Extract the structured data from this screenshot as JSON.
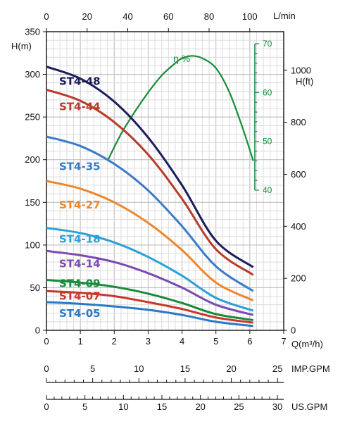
{
  "chart_data": {
    "type": "line",
    "x_bottom": {
      "label": "Q(m³/h)",
      "range": [
        0,
        7
      ],
      "ticks": [
        "0",
        "1",
        "2",
        "3",
        "4",
        "5",
        "6",
        "7"
      ]
    },
    "x_top": {
      "label": "L/min",
      "range": [
        0,
        116.7
      ],
      "ticks": [
        "0",
        "20",
        "40",
        "60",
        "80",
        "100"
      ]
    },
    "y_left": {
      "label": "H(m)",
      "range": [
        0,
        350
      ],
      "ticks": [
        "0",
        "50",
        "100",
        "150",
        "200",
        "250",
        "300",
        "350"
      ]
    },
    "y_right": {
      "label": "H(ft)",
      "ticks": [
        "0",
        "200",
        "400",
        "600",
        "800",
        "1000"
      ]
    },
    "efficiency": {
      "label": "η %",
      "ticks": [
        "40",
        "50",
        "60",
        "70"
      ],
      "range": [
        40,
        70
      ],
      "color": "#1a8a3a",
      "x": [
        1.8,
        2.2,
        2.6,
        3.0,
        3.4,
        3.8,
        4.0,
        4.3,
        4.6,
        5.0,
        5.4,
        5.8,
        6.1
      ],
      "values": [
        46,
        51.5,
        56,
        60,
        63.5,
        66,
        67,
        67.5,
        67,
        65,
        60,
        52.5,
        46
      ]
    },
    "imp_gpm": {
      "label": "IMP.GPM",
      "ticks": [
        "0",
        "5",
        "10",
        "15",
        "20",
        "25"
      ]
    },
    "us_gpm": {
      "label": "US.GPM",
      "ticks": [
        "0",
        "5",
        "10",
        "15",
        "20",
        "25",
        "30"
      ]
    },
    "grid": true,
    "series": [
      {
        "name": "ST4-48",
        "color": "#1c1c5c",
        "label_y": 292,
        "x": [
          0,
          1,
          2,
          3,
          4,
          5,
          6.1
        ],
        "values": [
          309,
          295,
          268,
          226,
          170,
          105,
          74
        ]
      },
      {
        "name": "ST4-44",
        "color": "#b83a2a",
        "label_y": 262,
        "x": [
          0,
          1,
          2,
          3,
          4,
          5,
          6.1
        ],
        "values": [
          282,
          269,
          244,
          206,
          154,
          95,
          65
        ]
      },
      {
        "name": "ST4-35",
        "color": "#3a7ac8",
        "label_y": 192,
        "x": [
          0,
          1,
          2,
          3,
          4,
          5,
          6.1
        ],
        "values": [
          227,
          216,
          195,
          164,
          122,
          75,
          46
        ]
      },
      {
        "name": "ST4-27",
        "color": "#f0862a",
        "label_y": 147,
        "x": [
          0,
          1,
          2,
          3,
          4,
          5,
          6.1
        ],
        "values": [
          175,
          166,
          150,
          126,
          94,
          56,
          35
        ]
      },
      {
        "name": "ST4-18",
        "color": "#2aa0d8",
        "label_y": 107,
        "x": [
          0,
          1,
          2,
          3,
          4,
          5,
          6.1
        ],
        "values": [
          120,
          114,
          103,
          86,
          64,
          38,
          23
        ]
      },
      {
        "name": "ST4-14",
        "color": "#7a4ab0",
        "label_y": 78,
        "x": [
          0,
          1,
          2,
          3,
          4,
          5,
          6.1
        ],
        "values": [
          93,
          88,
          80,
          67,
          50,
          30,
          18
        ]
      },
      {
        "name": "ST4-09",
        "color": "#1a8a3a",
        "label_y": 55,
        "x": [
          0,
          1,
          2,
          3,
          4,
          5,
          6.1
        ],
        "values": [
          59,
          56,
          51,
          43,
          32,
          19,
          12
        ]
      },
      {
        "name": "ST4-07",
        "color": "#c8372a",
        "label_y": 40,
        "x": [
          0,
          1,
          2,
          3,
          4,
          5,
          6.1
        ],
        "values": [
          46,
          44,
          40,
          33,
          25,
          15,
          9
        ]
      },
      {
        "name": "ST4-05",
        "color": "#2a78c8",
        "label_y": 20,
        "x": [
          0,
          1,
          2,
          3,
          4,
          5,
          6.1
        ],
        "values": [
          33,
          31,
          28,
          24,
          18,
          10,
          5
        ]
      }
    ]
  }
}
